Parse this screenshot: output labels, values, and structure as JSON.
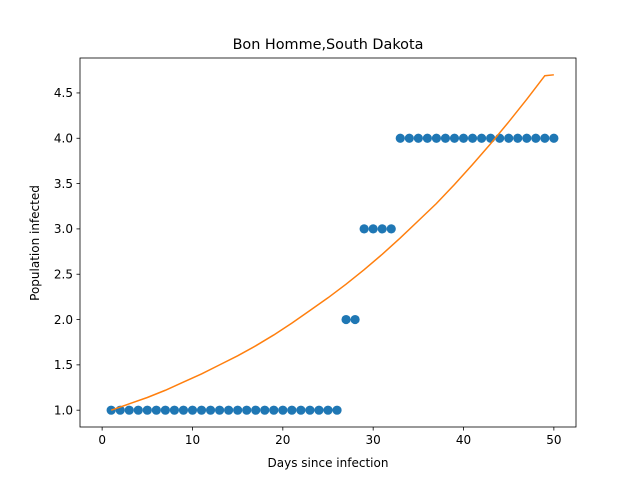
{
  "chart_data": {
    "type": "scatter",
    "title": "Bon Homme,South Dakota",
    "xlabel": "Days since infection",
    "ylabel": "Population infected",
    "xlim": [
      -2.45,
      52.45
    ],
    "ylim": [
      0.8145,
      4.8855
    ],
    "xticks": [
      0,
      10,
      20,
      30,
      40,
      50
    ],
    "xtick_labels": [
      "0",
      "10",
      "20",
      "30",
      "40",
      "50"
    ],
    "yticks": [
      1.0,
      1.5,
      2.0,
      2.5,
      3.0,
      3.5,
      4.0,
      4.5
    ],
    "ytick_labels": [
      "1.0",
      "1.5",
      "2.0",
      "2.5",
      "3.0",
      "3.5",
      "4.0",
      "4.5"
    ],
    "grid": false,
    "colors": {
      "scatter": "#1f77b4",
      "fit": "#ff7f0e"
    },
    "series": [
      {
        "kind": "scatter",
        "x": [
          1,
          2,
          3,
          4,
          5,
          6,
          7,
          8,
          9,
          10,
          11,
          12,
          13,
          14,
          15,
          16,
          17,
          18,
          19,
          20,
          21,
          22,
          23,
          24,
          25,
          26,
          27,
          28,
          29,
          30,
          31,
          32,
          33,
          34,
          35,
          36,
          37,
          38,
          39,
          40,
          41,
          42,
          43,
          44,
          45,
          46,
          47,
          48,
          49,
          50
        ],
        "y": [
          1,
          1,
          1,
          1,
          1,
          1,
          1,
          1,
          1,
          1,
          1,
          1,
          1,
          1,
          1,
          1,
          1,
          1,
          1,
          1,
          1,
          1,
          1,
          1,
          1,
          1,
          2,
          2,
          3,
          3,
          3,
          3,
          4,
          4,
          4,
          4,
          4,
          4,
          4,
          4,
          4,
          4,
          4,
          4,
          4,
          4,
          4,
          4,
          4,
          4
        ]
      },
      {
        "kind": "line",
        "x": [
          1,
          3,
          5,
          7,
          9,
          11,
          13,
          15,
          17,
          19,
          21,
          23,
          25,
          27,
          29,
          31,
          33,
          35,
          37,
          39,
          41,
          43,
          45,
          47,
          49,
          50
        ],
        "y": [
          1.0,
          1.07,
          1.14,
          1.22,
          1.31,
          1.4,
          1.5,
          1.6,
          1.71,
          1.83,
          1.96,
          2.1,
          2.24,
          2.39,
          2.55,
          2.72,
          2.9,
          3.09,
          3.28,
          3.49,
          3.71,
          3.94,
          4.18,
          4.43,
          4.69,
          4.7
        ]
      }
    ]
  }
}
